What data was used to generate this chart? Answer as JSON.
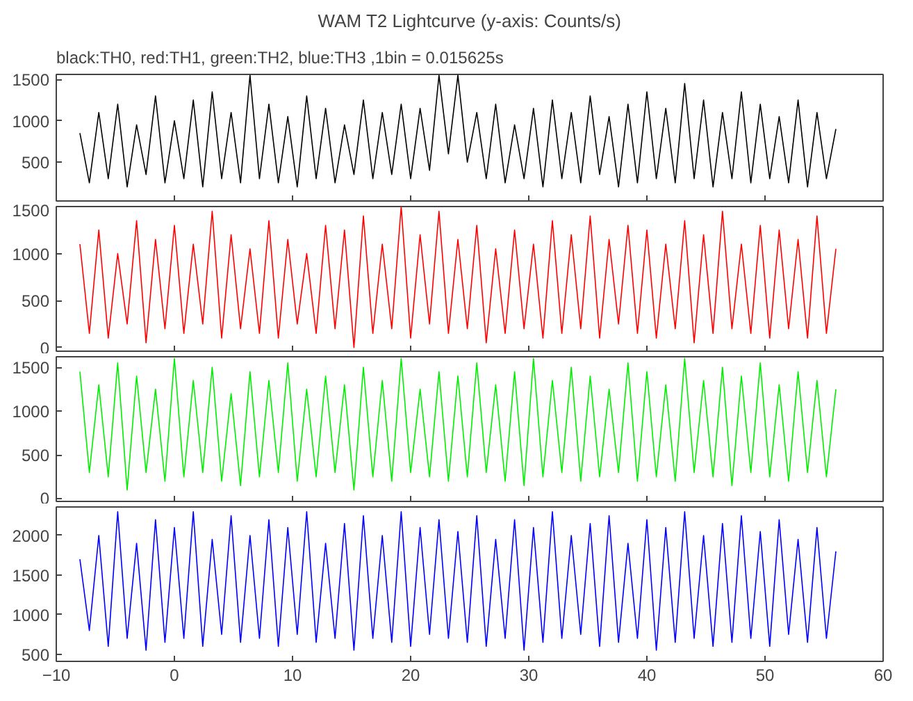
{
  "chart_data": [
    {
      "type": "line",
      "title": "WAM T2 Lightcurve (y-axis: Counts/s)",
      "subtitle": "black:TH0, red:TH1, green:TH2, blue:TH3 ,1bin = 0.015625s",
      "color": "#000000",
      "xlim": [
        -10,
        60
      ],
      "xticks": [
        -10,
        0,
        10,
        20,
        30,
        40,
        50,
        60
      ],
      "ylim": [
        30,
        1560
      ],
      "yticks": [
        500,
        1000,
        1500
      ],
      "tick_labels": "y",
      "x": [
        -8,
        -7.2,
        -6.4,
        -5.6,
        -4.8,
        -4,
        -3.2,
        -2.4,
        -1.6,
        -0.8,
        0,
        0.8,
        1.6,
        2.4,
        3.2,
        4,
        4.8,
        5.6,
        6.4,
        7.2,
        8,
        8.8,
        9.6,
        10.4,
        11.2,
        12,
        12.8,
        13.6,
        14.4,
        15.2,
        16,
        16.8,
        17.6,
        18.4,
        19.2,
        20,
        20.8,
        21.6,
        22.4,
        23.2,
        24,
        24.8,
        25.6,
        26.4,
        27.2,
        28,
        28.8,
        29.6,
        30.4,
        31.2,
        32,
        32.8,
        33.6,
        34.4,
        35.2,
        36,
        36.8,
        37.6,
        38.4,
        39.2,
        40,
        40.8,
        41.6,
        42.4,
        43.2,
        44,
        44.8,
        45.6,
        46.4,
        47.2,
        48,
        48.8,
        49.6,
        50.4,
        51.2,
        52,
        52.8,
        53.6,
        54.4,
        55.2,
        56
      ],
      "values": [
        850,
        250,
        1100,
        300,
        1200,
        200,
        950,
        350,
        1300,
        250,
        1000,
        300,
        1250,
        200,
        1350,
        300,
        1100,
        250,
        1550,
        300,
        1200,
        250,
        1050,
        200,
        1300,
        300,
        1150,
        250,
        950,
        350,
        1250,
        300,
        1100,
        350,
        1200,
        300,
        1150,
        400,
        1550,
        600,
        1550,
        500,
        1100,
        300,
        1200,
        250,
        950,
        300,
        1150,
        200,
        1250,
        300,
        1100,
        250,
        1300,
        350,
        1050,
        200,
        1200,
        250,
        1350,
        300,
        1150,
        250,
        1450,
        300,
        1250,
        200,
        1100,
        300,
        1350,
        250,
        1200,
        300,
        1050,
        250,
        1250,
        200,
        1100,
        300,
        900
      ]
    },
    {
      "type": "line",
      "color": "#ff0000",
      "xlim": [
        -10,
        60
      ],
      "xticks": [
        -10,
        0,
        10,
        20,
        30,
        40,
        50,
        60
      ],
      "ylim": [
        -40,
        1500
      ],
      "yticks": [
        0,
        500,
        1000,
        1500
      ],
      "tick_labels": "y",
      "x": [
        -8,
        -7.2,
        -6.4,
        -5.6,
        -4.8,
        -4,
        -3.2,
        -2.4,
        -1.6,
        -0.8,
        0,
        0.8,
        1.6,
        2.4,
        3.2,
        4,
        4.8,
        5.6,
        6.4,
        7.2,
        8,
        8.8,
        9.6,
        10.4,
        11.2,
        12,
        12.8,
        13.6,
        14.4,
        15.2,
        16,
        16.8,
        17.6,
        18.4,
        19.2,
        20,
        20.8,
        21.6,
        22.4,
        23.2,
        24,
        24.8,
        25.6,
        26.4,
        27.2,
        28,
        28.8,
        29.6,
        30.4,
        31.2,
        32,
        32.8,
        33.6,
        34.4,
        35.2,
        36,
        36.8,
        37.6,
        38.4,
        39.2,
        40,
        40.8,
        41.6,
        42.4,
        43.2,
        44,
        44.8,
        45.6,
        46.4,
        47.2,
        48,
        48.8,
        49.6,
        50.4,
        51.2,
        52,
        52.8,
        53.6,
        54.4,
        55.2,
        56
      ],
      "values": [
        1100,
        150,
        1250,
        100,
        1000,
        250,
        1350,
        50,
        1150,
        200,
        1300,
        150,
        1100,
        250,
        1450,
        100,
        1200,
        200,
        1050,
        150,
        1350,
        100,
        1150,
        250,
        1000,
        150,
        1300,
        200,
        1250,
        0,
        1400,
        150,
        1100,
        200,
        1500,
        100,
        1200,
        250,
        1450,
        150,
        1150,
        200,
        1300,
        50,
        1050,
        150,
        1250,
        200,
        1100,
        100,
        1350,
        150,
        1200,
        200,
        1400,
        100,
        1150,
        250,
        1300,
        150,
        1250,
        100,
        1100,
        200,
        1350,
        50,
        1200,
        150,
        1450,
        200,
        1100,
        150,
        1300,
        100,
        1250,
        200,
        1150,
        100,
        1400,
        150,
        1050
      ]
    },
    {
      "type": "line",
      "color": "#00ee00",
      "xlim": [
        -10,
        60
      ],
      "xticks": [
        -10,
        0,
        10,
        20,
        30,
        40,
        50,
        60
      ],
      "ylim": [
        -30,
        1620
      ],
      "yticks": [
        0,
        500,
        1000,
        1500
      ],
      "tick_labels": "y",
      "x": [
        -8,
        -7.2,
        -6.4,
        -5.6,
        -4.8,
        -4,
        -3.2,
        -2.4,
        -1.6,
        -0.8,
        0,
        0.8,
        1.6,
        2.4,
        3.2,
        4,
        4.8,
        5.6,
        6.4,
        7.2,
        8,
        8.8,
        9.6,
        10.4,
        11.2,
        12,
        12.8,
        13.6,
        14.4,
        15.2,
        16,
        16.8,
        17.6,
        18.4,
        19.2,
        20,
        20.8,
        21.6,
        22.4,
        23.2,
        24,
        24.8,
        25.6,
        26.4,
        27.2,
        28,
        28.8,
        29.6,
        30.4,
        31.2,
        32,
        32.8,
        33.6,
        34.4,
        35.2,
        36,
        36.8,
        37.6,
        38.4,
        39.2,
        40,
        40.8,
        41.6,
        42.4,
        43.2,
        44,
        44.8,
        45.6,
        46.4,
        47.2,
        48,
        48.8,
        49.6,
        50.4,
        51.2,
        52,
        52.8,
        53.6,
        54.4,
        55.2,
        56
      ],
      "values": [
        1450,
        300,
        1300,
        250,
        1550,
        100,
        1400,
        300,
        1250,
        200,
        1600,
        250,
        1350,
        300,
        1500,
        200,
        1200,
        150,
        1450,
        250,
        1350,
        300,
        1550,
        200,
        1250,
        250,
        1400,
        300,
        1300,
        100,
        1500,
        250,
        1350,
        200,
        1600,
        300,
        1250,
        250,
        1450,
        200,
        1400,
        250,
        1550,
        300,
        1300,
        200,
        1450,
        150,
        1600,
        250,
        1350,
        300,
        1500,
        200,
        1400,
        250,
        1250,
        300,
        1550,
        200,
        1450,
        250,
        1300,
        200,
        1600,
        300,
        1350,
        250,
        1500,
        150,
        1400,
        300,
        1550,
        250,
        1300,
        200,
        1450,
        300,
        1350,
        250,
        1250
      ]
    },
    {
      "type": "line",
      "color": "#0000ff",
      "xlim": [
        -10,
        60
      ],
      "xticks": [
        -10,
        0,
        10,
        20,
        30,
        40,
        50,
        60
      ],
      "ylim": [
        410,
        2360
      ],
      "yticks": [
        500,
        1000,
        1500,
        2000
      ],
      "x": [
        -8,
        -7.2,
        -6.4,
        -5.6,
        -4.8,
        -4,
        -3.2,
        -2.4,
        -1.6,
        -0.8,
        0,
        0.8,
        1.6,
        2.4,
        3.2,
        4,
        4.8,
        5.6,
        6.4,
        7.2,
        8,
        8.8,
        9.6,
        10.4,
        11.2,
        12,
        12.8,
        13.6,
        14.4,
        15.2,
        16,
        16.8,
        17.6,
        18.4,
        19.2,
        20,
        20.8,
        21.6,
        22.4,
        23.2,
        24,
        24.8,
        25.6,
        26.4,
        27.2,
        28,
        28.8,
        29.6,
        30.4,
        31.2,
        32,
        32.8,
        33.6,
        34.4,
        35.2,
        36,
        36.8,
        37.6,
        38.4,
        39.2,
        40,
        40.8,
        41.6,
        42.4,
        43.2,
        44,
        44.8,
        45.6,
        46.4,
        47.2,
        48,
        48.8,
        49.6,
        50.4,
        51.2,
        52,
        52.8,
        53.6,
        54.4,
        55.2,
        56
      ],
      "values": [
        1700,
        800,
        2000,
        600,
        2300,
        700,
        1900,
        550,
        2200,
        650,
        2100,
        700,
        2300,
        600,
        1950,
        750,
        2250,
        650,
        2000,
        700,
        2200,
        600,
        2100,
        750,
        2300,
        650,
        1900,
        700,
        2150,
        550,
        2250,
        700,
        2000,
        650,
        2300,
        600,
        2100,
        750,
        2200,
        700,
        2050,
        650,
        2250,
        600,
        1950,
        700,
        2200,
        550,
        2100,
        650,
        2300,
        700,
        2000,
        750,
        2150,
        600,
        2250,
        650,
        1900,
        700,
        2200,
        550,
        2100,
        650,
        2300,
        700,
        2000,
        600,
        2150,
        650,
        2250,
        700,
        2050,
        600,
        2200,
        750,
        1950,
        650,
        2100,
        700,
        1800
      ]
    }
  ]
}
